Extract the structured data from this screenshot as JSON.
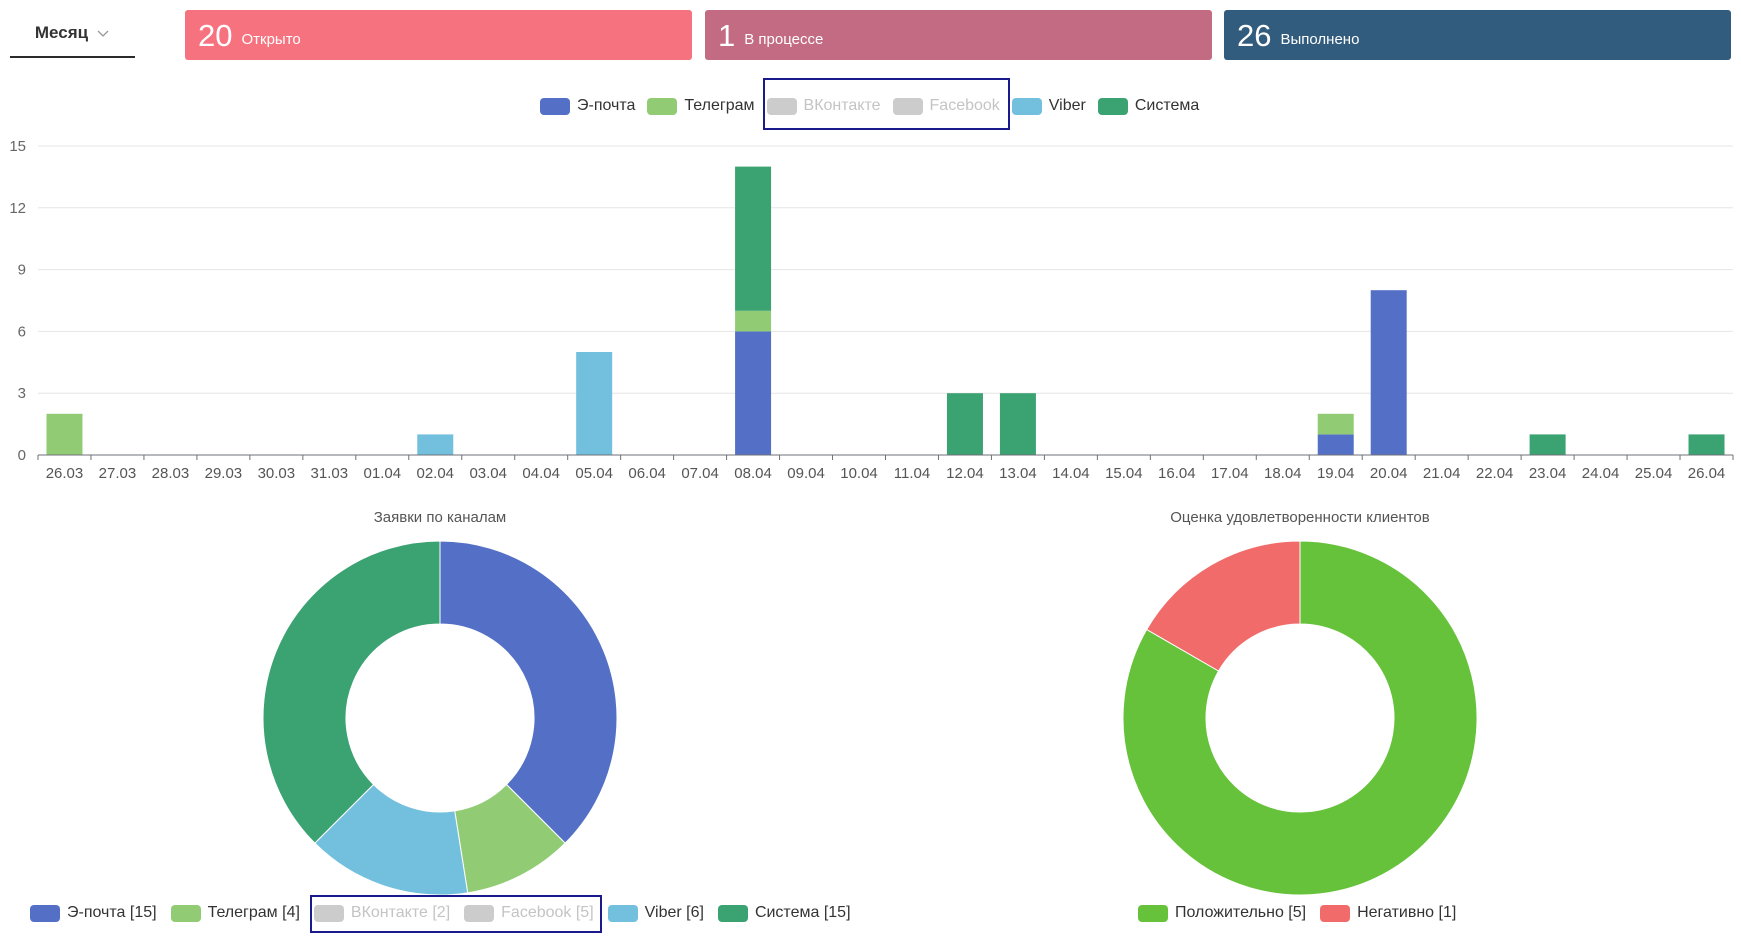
{
  "period": {
    "label": "Месяц"
  },
  "stats": [
    {
      "value": "20",
      "label": "Открыто",
      "color": "#f7727f"
    },
    {
      "value": "1",
      "label": "В процессе",
      "color": "#c36b83"
    },
    {
      "value": "26",
      "label": "Выполнено",
      "color": "#325c7e"
    }
  ],
  "bar_legend": [
    {
      "label": "Э-почта",
      "color": "#5470c6",
      "active": true
    },
    {
      "label": "Телеграм",
      "color": "#91cc75",
      "active": true
    },
    {
      "label": "ВКонтакте",
      "color": "#cccccc",
      "active": false
    },
    {
      "label": "Facebook",
      "color": "#cccccc",
      "active": false
    },
    {
      "label": "Viber",
      "color": "#73c0de",
      "active": true
    },
    {
      "label": "Система",
      "color": "#3ba272",
      "active": true
    }
  ],
  "chart_data": [
    {
      "type": "bar",
      "stacked": true,
      "categories": [
        "26.03",
        "27.03",
        "28.03",
        "29.03",
        "30.03",
        "31.03",
        "01.04",
        "02.04",
        "03.04",
        "04.04",
        "05.04",
        "06.04",
        "07.04",
        "08.04",
        "09.04",
        "10.04",
        "11.04",
        "12.04",
        "13.04",
        "14.04",
        "15.04",
        "16.04",
        "17.04",
        "18.04",
        "19.04",
        "20.04",
        "21.04",
        "22.04",
        "23.04",
        "24.04",
        "25.04",
        "26.04"
      ],
      "yticks": [
        0,
        3,
        6,
        9,
        12,
        15
      ],
      "ylim": [
        0,
        15
      ],
      "series": [
        {
          "name": "Э-почта",
          "color": "#5470c6",
          "values": [
            0,
            0,
            0,
            0,
            0,
            0,
            0,
            0,
            0,
            0,
            0,
            0,
            0,
            6,
            0,
            0,
            0,
            0,
            0,
            0,
            0,
            0,
            0,
            0,
            1,
            8,
            0,
            0,
            0,
            0,
            0,
            0
          ]
        },
        {
          "name": "Телеграм",
          "color": "#91cc75",
          "values": [
            2,
            0,
            0,
            0,
            0,
            0,
            0,
            0,
            0,
            0,
            0,
            0,
            0,
            1,
            0,
            0,
            0,
            0,
            0,
            0,
            0,
            0,
            0,
            0,
            1,
            0,
            0,
            0,
            0,
            0,
            0,
            0
          ]
        },
        {
          "name": "Viber",
          "color": "#73c0de",
          "values": [
            0,
            0,
            0,
            0,
            0,
            0,
            0,
            1,
            0,
            0,
            5,
            0,
            0,
            0,
            0,
            0,
            0,
            0,
            0,
            0,
            0,
            0,
            0,
            0,
            0,
            0,
            0,
            0,
            0,
            0,
            0,
            0
          ]
        },
        {
          "name": "Система",
          "color": "#3ba272",
          "values": [
            0,
            0,
            0,
            0,
            0,
            0,
            0,
            0,
            0,
            0,
            0,
            0,
            0,
            7,
            0,
            0,
            0,
            3,
            3,
            0,
            0,
            0,
            0,
            0,
            0,
            0,
            0,
            0,
            1,
            0,
            0,
            1
          ]
        }
      ]
    },
    {
      "type": "pie",
      "title": "Заявки по каналам",
      "slices": [
        {
          "name": "Э-почта",
          "value": 15,
          "color": "#5470c6",
          "active": true
        },
        {
          "name": "Телеграм",
          "value": 4,
          "color": "#91cc75",
          "active": true
        },
        {
          "name": "ВКонтакте",
          "value": 2,
          "color": "#cccccc",
          "active": false
        },
        {
          "name": "Facebook",
          "value": 5,
          "color": "#cccccc",
          "active": false
        },
        {
          "name": "Viber",
          "value": 6,
          "color": "#73c0de",
          "active": true
        },
        {
          "name": "Система",
          "value": 15,
          "color": "#3ba272",
          "active": true
        }
      ]
    },
    {
      "type": "pie",
      "title": "Оценка удовлетворенности клиентов",
      "slices": [
        {
          "name": "Положительно",
          "value": 5,
          "color": "#66c23a",
          "active": true
        },
        {
          "name": "Негативно",
          "value": 1,
          "color": "#f26b6b",
          "active": true
        }
      ]
    }
  ],
  "pie1_legend": [
    {
      "label": "Э-почта [15]",
      "color": "#5470c6",
      "active": true
    },
    {
      "label": "Телеграм [4]",
      "color": "#91cc75",
      "active": true
    },
    {
      "label": "ВКонтакте [2]",
      "color": "#cccccc",
      "active": false
    },
    {
      "label": "Facebook [5]",
      "color": "#cccccc",
      "active": false
    },
    {
      "label": "Viber [6]",
      "color": "#73c0de",
      "active": true
    },
    {
      "label": "Система [15]",
      "color": "#3ba272",
      "active": true
    }
  ],
  "pie2_legend": [
    {
      "label": "Положительно [5]",
      "color": "#66c23a",
      "active": true
    },
    {
      "label": "Негативно [1]",
      "color": "#f26b6b",
      "active": true
    }
  ]
}
